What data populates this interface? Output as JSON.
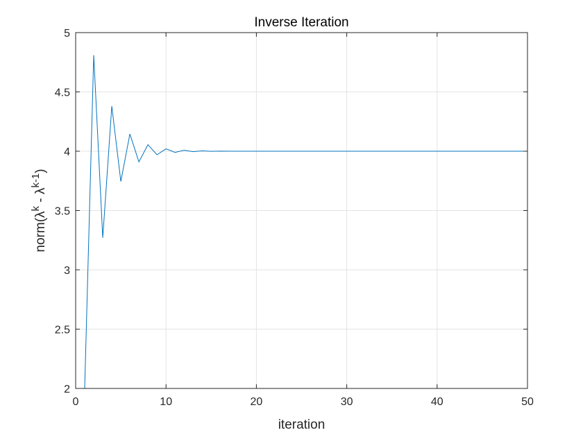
{
  "chart_data": {
    "type": "line",
    "title": "Inverse Iteration",
    "xlabel": "iteration",
    "ylabel": {
      "prefix": "norm(λ",
      "sup1": "k",
      "middle": " - λ",
      "sup2": "k-1",
      "suffix": ")"
    },
    "xlim": [
      0,
      50
    ],
    "ylim": [
      2,
      5
    ],
    "xticks": [
      0,
      10,
      20,
      30,
      40,
      50
    ],
    "yticks": [
      2,
      2.5,
      3,
      3.5,
      4,
      4.5,
      5
    ],
    "xtick_labels": [
      "0",
      "10",
      "20",
      "30",
      "40",
      "50"
    ],
    "ytick_labels": [
      "2",
      "2.5",
      "3",
      "3.5",
      "4",
      "4.5",
      "5"
    ],
    "grid": true,
    "line_color": "#0072BD",
    "series": [
      {
        "x": [
          1,
          2,
          3,
          4,
          5,
          6,
          7,
          8,
          9,
          10,
          11,
          12,
          13,
          14,
          15,
          16,
          17,
          18,
          19,
          20,
          21,
          22,
          23,
          24,
          25,
          26,
          27,
          28,
          29,
          30,
          31,
          32,
          33,
          34,
          35,
          36,
          37,
          38,
          39,
          40,
          41,
          42,
          43,
          44,
          45,
          46,
          47,
          48,
          49,
          50
        ],
        "values": [
          2.0,
          4.81,
          3.27,
          4.38,
          3.745,
          4.145,
          3.91,
          4.055,
          3.97,
          4.02,
          3.99,
          4.008,
          3.996,
          4.003,
          3.999,
          4.001,
          4.0,
          4.0,
          4.0,
          4.0,
          4.0,
          4.0,
          4.0,
          4.0,
          4.0,
          4.0,
          4.0,
          4.0,
          4.0,
          4.0,
          4.0,
          4.0,
          4.0,
          4.0,
          4.0,
          4.0,
          4.0,
          4.0,
          4.0,
          4.0,
          4.0,
          4.0,
          4.0,
          4.0,
          4.0,
          4.0,
          4.0,
          4.0,
          4.0,
          4.0
        ]
      }
    ]
  }
}
